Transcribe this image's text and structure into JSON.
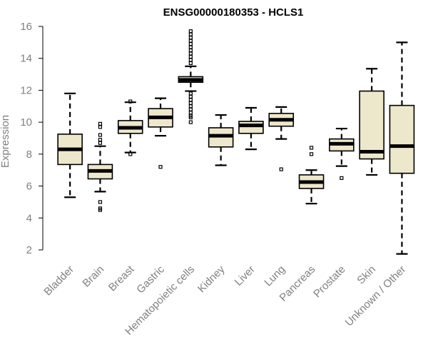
{
  "chart_data": {
    "type": "boxplot",
    "title": "ENSG00000180353 - HCLS1",
    "ylabel": "Expression",
    "xlabel": "",
    "ylim": [
      1.5,
      16.2
    ],
    "yticks": [
      2,
      4,
      6,
      8,
      10,
      12,
      14,
      16
    ],
    "box_fill": "#ede7cc",
    "box_stroke": "#000000",
    "categories": [
      "Bladder",
      "Brain",
      "Breast",
      "Gastric",
      "Hematopoietic cells",
      "Kidney",
      "Liver",
      "Lung",
      "Pancreas",
      "Prostate",
      "Skin",
      "Unknown / Other"
    ],
    "boxes": [
      {
        "whisker_low": 5.3,
        "q1": 7.35,
        "median": 8.3,
        "q3": 9.25,
        "whisker_high": 11.8,
        "outliers": []
      },
      {
        "whisker_low": 5.65,
        "q1": 6.45,
        "median": 6.95,
        "q3": 7.35,
        "whisker_high": 8.5,
        "outliers": [
          9.9,
          9.7,
          9.2,
          8.9,
          8.7,
          5.0,
          4.6,
          4.5
        ]
      },
      {
        "whisker_low": 8.1,
        "q1": 9.3,
        "median": 9.65,
        "q3": 10.1,
        "whisker_high": 11.25,
        "outliers": [
          11.3,
          8.0
        ]
      },
      {
        "whisker_low": 9.15,
        "q1": 9.7,
        "median": 10.3,
        "q3": 10.85,
        "whisker_high": 11.5,
        "outliers": [
          7.2
        ]
      },
      {
        "whisker_low": 11.95,
        "q1": 12.5,
        "median": 12.65,
        "q3": 12.85,
        "whisker_high": 13.5,
        "outliers": [
          15.7,
          15.5,
          15.3,
          15.1,
          14.9,
          14.7,
          14.5,
          14.3,
          14.1,
          13.9,
          13.7,
          11.8,
          11.6,
          11.4,
          11.2,
          11.0,
          10.8,
          10.6,
          10.4,
          10.3,
          10.0
        ]
      },
      {
        "whisker_low": 7.3,
        "q1": 8.45,
        "median": 9.15,
        "q3": 9.65,
        "whisker_high": 10.45,
        "outliers": []
      },
      {
        "whisker_low": 8.3,
        "q1": 9.3,
        "median": 9.8,
        "q3": 10.05,
        "whisker_high": 10.9,
        "outliers": []
      },
      {
        "whisker_low": 8.95,
        "q1": 9.75,
        "median": 10.15,
        "q3": 10.55,
        "whisker_high": 10.95,
        "outliers": [
          7.05
        ]
      },
      {
        "whisker_low": 4.9,
        "q1": 5.85,
        "median": 6.25,
        "q3": 6.7,
        "whisker_high": 7.0,
        "outliers": [
          8.4,
          8.0
        ]
      },
      {
        "whisker_low": 7.25,
        "q1": 8.2,
        "median": 8.65,
        "q3": 8.95,
        "whisker_high": 9.6,
        "outliers": [
          6.5
        ]
      },
      {
        "whisker_low": 6.7,
        "q1": 7.7,
        "median": 8.15,
        "q3": 11.95,
        "whisker_high": 13.35,
        "outliers": []
      },
      {
        "whisker_low": 1.75,
        "q1": 6.8,
        "median": 8.5,
        "q3": 11.05,
        "whisker_high": 15.0,
        "outliers": []
      }
    ]
  }
}
